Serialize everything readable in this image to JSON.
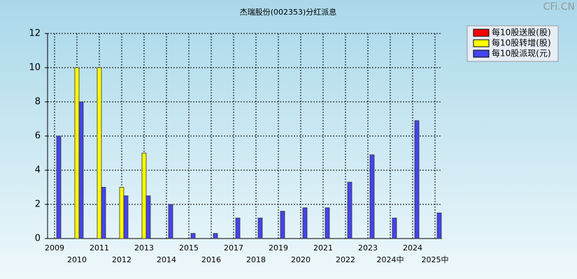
{
  "chart_data": {
    "type": "bar",
    "title": "杰瑞股份(002353)分红派息",
    "watermark": "CFi.CN",
    "categories": [
      "2009",
      "2010",
      "2011",
      "2012",
      "2013",
      "2014",
      "2015",
      "2016",
      "2017",
      "2018",
      "2019",
      "2020",
      "2021",
      "2022",
      "2023",
      "2024中",
      "2024",
      "2025中"
    ],
    "series": [
      {
        "name": "每10股送股(股)",
        "color": "#ff0000",
        "values": [
          null,
          null,
          null,
          null,
          null,
          null,
          null,
          null,
          null,
          null,
          null,
          null,
          null,
          null,
          null,
          null,
          null,
          null
        ]
      },
      {
        "name": "每10股转增(股)",
        "color": "#ffff00",
        "values": [
          null,
          10,
          10,
          3,
          5,
          null,
          null,
          null,
          null,
          null,
          null,
          null,
          null,
          null,
          null,
          null,
          null,
          null
        ]
      },
      {
        "name": "每10股派现(元)",
        "color": "#4444ee",
        "values": [
          6,
          8,
          3,
          2.5,
          2.5,
          2,
          0.3,
          0.3,
          1.2,
          1.2,
          1.6,
          1.8,
          1.8,
          3.3,
          4.9,
          1.2,
          6.9,
          1.5
        ]
      }
    ],
    "ylim": [
      0,
      12
    ],
    "yticks": [
      0,
      2,
      4,
      6,
      8,
      10,
      12
    ],
    "grid": true
  }
}
